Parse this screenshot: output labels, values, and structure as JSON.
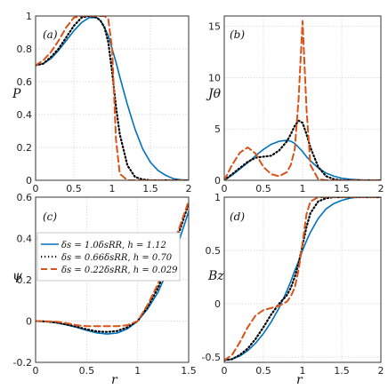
{
  "colors": {
    "s1": "#0072BD",
    "s2": "#000000",
    "s3": "#D95319"
  },
  "legend": {
    "entries": [
      "δs = 1.0δsRR, h = 1.12",
      "δs = 0.66δsRR, h = 0.70",
      "δs = 0.22δsRR, h = 0.029"
    ]
  },
  "chart_data": [
    {
      "panel": "(a)",
      "type": "line",
      "xlabel": "",
      "ylabel": "P",
      "xlim": [
        0,
        2
      ],
      "ylim": [
        0,
        1
      ],
      "grid": true,
      "xticks": [
        "0",
        "0.5",
        "1",
        "1.5",
        "2"
      ],
      "yticks": [
        "0",
        "0.2",
        "0.4",
        "0.6",
        "0.8",
        "1"
      ],
      "x": [
        0,
        0.1,
        0.2,
        0.3,
        0.4,
        0.5,
        0.6,
        0.7,
        0.8,
        0.85,
        0.9,
        0.95,
        1.0,
        1.05,
        1.1,
        1.2,
        1.3,
        1.4,
        1.5,
        1.6,
        1.7,
        1.8,
        1.9,
        2.0
      ],
      "series": [
        {
          "style": "solid",
          "values": [
            0.7,
            0.71,
            0.74,
            0.79,
            0.85,
            0.91,
            0.96,
            0.99,
            0.99,
            0.97,
            0.93,
            0.88,
            0.8,
            0.72,
            0.63,
            0.46,
            0.31,
            0.19,
            0.11,
            0.06,
            0.03,
            0.01,
            0.003,
            0
          ]
        },
        {
          "style": "dotted",
          "values": [
            0.7,
            0.71,
            0.75,
            0.8,
            0.87,
            0.94,
            0.99,
            1.0,
            0.99,
            0.97,
            0.93,
            0.84,
            0.66,
            0.45,
            0.28,
            0.09,
            0.02,
            0.005,
            0,
            0,
            0,
            0,
            0,
            0
          ]
        },
        {
          "style": "dashed",
          "values": [
            0.7,
            0.73,
            0.78,
            0.85,
            0.93,
            0.99,
            1.0,
            1.0,
            1.0,
            1.0,
            1.0,
            0.98,
            0.8,
            0.25,
            0.04,
            0,
            0,
            0,
            0,
            0,
            0,
            0,
            0,
            0
          ]
        }
      ]
    },
    {
      "panel": "(b)",
      "type": "line",
      "xlabel": "",
      "ylabel": "Jθ",
      "xlim": [
        0,
        2
      ],
      "ylim": [
        0,
        16
      ],
      "grid": true,
      "xticks": [
        "0",
        "0.5",
        "1",
        "1.5",
        "2"
      ],
      "yticks": [
        "0",
        "5",
        "10",
        "15"
      ],
      "x": [
        0,
        0.1,
        0.2,
        0.3,
        0.4,
        0.5,
        0.6,
        0.7,
        0.8,
        0.85,
        0.9,
        0.95,
        1.0,
        1.05,
        1.1,
        1.2,
        1.3,
        1.4,
        1.5,
        1.6,
        1.7,
        1.8,
        1.9,
        2.0
      ],
      "series": [
        {
          "style": "solid",
          "values": [
            0,
            0.5,
            1.1,
            1.7,
            2.4,
            3.0,
            3.5,
            3.8,
            3.9,
            3.8,
            3.6,
            3.2,
            2.8,
            2.3,
            1.9,
            1.2,
            0.7,
            0.4,
            0.2,
            0.1,
            0.05,
            0.02,
            0.01,
            0
          ]
        },
        {
          "style": "dotted",
          "values": [
            0,
            0.6,
            1.2,
            1.8,
            2.2,
            2.3,
            2.4,
            2.9,
            3.8,
            4.5,
            5.3,
            5.8,
            5.6,
            4.5,
            3.2,
            1.3,
            0.4,
            0.1,
            0,
            0,
            0,
            0,
            0,
            0
          ]
        },
        {
          "style": "dashed",
          "values": [
            0,
            1.5,
            2.7,
            3.2,
            2.6,
            1.3,
            0.6,
            0.4,
            0.8,
            1.5,
            3.0,
            8.0,
            15.5,
            7.0,
            1.5,
            0.1,
            0,
            0,
            0,
            0,
            0,
            0,
            0,
            0
          ]
        }
      ]
    },
    {
      "panel": "(c)",
      "type": "line",
      "xlabel": "r",
      "ylabel": "ψ",
      "xlim": [
        0,
        1.5
      ],
      "ylim": [
        -0.2,
        0.6
      ],
      "grid": true,
      "xticks": [
        "0",
        "0.5",
        "1",
        "1.5"
      ],
      "yticks": [
        "-0.2",
        "0",
        "0.2",
        "0.4",
        "0.6"
      ],
      "x": [
        0,
        0.1,
        0.2,
        0.3,
        0.4,
        0.5,
        0.6,
        0.7,
        0.8,
        0.9,
        1.0,
        1.1,
        1.2,
        1.3,
        1.4,
        1.5
      ],
      "series": [
        {
          "style": "solid",
          "values": [
            0,
            -0.002,
            -0.008,
            -0.018,
            -0.03,
            -0.045,
            -0.057,
            -0.063,
            -0.058,
            -0.038,
            0.0,
            0.06,
            0.14,
            0.25,
            0.38,
            0.53
          ]
        },
        {
          "style": "dotted",
          "values": [
            0,
            -0.002,
            -0.007,
            -0.016,
            -0.027,
            -0.04,
            -0.05,
            -0.053,
            -0.048,
            -0.03,
            0.0,
            0.07,
            0.16,
            0.28,
            0.42,
            0.57
          ]
        },
        {
          "style": "dashed",
          "values": [
            0,
            -0.001,
            -0.003,
            -0.01,
            -0.02,
            -0.025,
            -0.025,
            -0.025,
            -0.025,
            -0.02,
            0.0,
            0.08,
            0.18,
            0.3,
            0.44,
            0.58
          ]
        }
      ]
    },
    {
      "panel": "(d)",
      "type": "line",
      "xlabel": "r",
      "ylabel": "Bz",
      "xlim": [
        0,
        2
      ],
      "ylim": [
        -0.55,
        1
      ],
      "grid": true,
      "xticks": [
        "0",
        "0.5",
        "1",
        "1.5",
        "2"
      ],
      "yticks": [
        "-0.5",
        "0",
        "0.5",
        "1"
      ],
      "x": [
        0,
        0.1,
        0.2,
        0.3,
        0.4,
        0.5,
        0.6,
        0.7,
        0.8,
        0.85,
        0.9,
        0.95,
        1.0,
        1.05,
        1.1,
        1.2,
        1.3,
        1.4,
        1.5,
        1.6,
        1.7,
        1.8,
        1.9,
        2.0
      ],
      "series": [
        {
          "style": "solid",
          "values": [
            -0.53,
            -0.52,
            -0.49,
            -0.44,
            -0.37,
            -0.28,
            -0.17,
            -0.04,
            0.12,
            0.21,
            0.31,
            0.4,
            0.5,
            0.59,
            0.67,
            0.8,
            0.89,
            0.94,
            0.97,
            0.99,
            1.0,
            1.0,
            1.0,
            1.0
          ]
        },
        {
          "style": "dotted",
          "values": [
            -0.53,
            -0.52,
            -0.48,
            -0.42,
            -0.33,
            -0.22,
            -0.1,
            0.0,
            0.08,
            0.15,
            0.25,
            0.38,
            0.55,
            0.72,
            0.85,
            0.96,
            0.99,
            1.0,
            1.0,
            1.0,
            1.0,
            1.0,
            1.0,
            1.0
          ]
        },
        {
          "style": "dashed",
          "values": [
            -0.53,
            -0.48,
            -0.36,
            -0.22,
            -0.11,
            -0.06,
            -0.04,
            -0.02,
            0.02,
            0.07,
            0.15,
            0.32,
            0.57,
            0.84,
            0.96,
            1.0,
            1.0,
            1.0,
            1.0,
            1.0,
            1.0,
            1.0,
            1.0,
            1.0
          ]
        }
      ]
    }
  ]
}
